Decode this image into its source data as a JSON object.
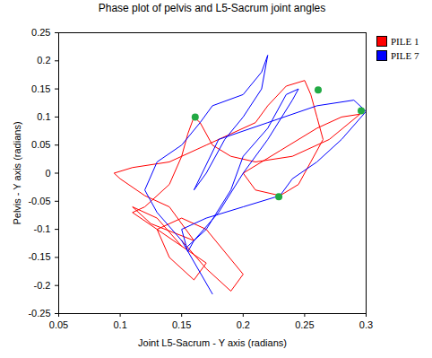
{
  "chart_data": {
    "type": "line",
    "title": "Phase plot of pelvis and L5-Sacrum joint angles",
    "x_label": "Joint L5-Sacrum - Y axis (radians)",
    "y_label": "Pelvis - Y axis (radians)",
    "xlim": [
      0.05,
      0.3
    ],
    "xticks": [
      0.05,
      0.1,
      0.15,
      0.2,
      0.25,
      0.3
    ],
    "ylim": [
      -0.25,
      0.25
    ],
    "yticks": [
      -0.25,
      -0.2,
      -0.15,
      -0.1,
      -0.05,
      0,
      0.05,
      0.1,
      0.15,
      0.2,
      0.25
    ],
    "legend": "right",
    "grid": false,
    "series": [
      {
        "name": "PILE 1",
        "color": "#ff0000",
        "x": [
          0.15,
          0.13,
          0.11,
          0.125,
          0.16,
          0.14,
          0.12,
          0.1,
          0.095,
          0.11,
          0.14,
          0.17,
          0.19,
          0.21,
          0.22,
          0.235,
          0.25,
          0.255,
          0.26,
          0.265,
          0.255,
          0.245,
          0.23,
          0.21,
          0.2,
          0.23,
          0.26,
          0.28,
          0.295,
          0.27,
          0.24,
          0.21,
          0.19,
          0.175,
          0.165,
          0.16,
          0.155,
          0.15,
          0.14,
          0.12,
          0.11,
          0.13,
          0.15,
          0.17,
          0.16,
          0.14,
          0.13,
          0.15,
          0.17,
          0.2,
          0.19,
          0.17,
          0.15
        ],
        "y": [
          -0.13,
          -0.08,
          -0.06,
          -0.09,
          -0.12,
          -0.06,
          -0.04,
          -0.01,
          0.0,
          0.01,
          0.02,
          0.05,
          0.07,
          0.09,
          0.12,
          0.155,
          0.165,
          0.14,
          0.1,
          0.06,
          0.02,
          -0.02,
          -0.04,
          -0.03,
          0.0,
          0.04,
          0.08,
          0.1,
          0.105,
          0.06,
          0.03,
          0.02,
          0.03,
          0.05,
          0.09,
          0.1,
          0.07,
          0.03,
          -0.02,
          -0.06,
          -0.07,
          -0.1,
          -0.13,
          -0.16,
          -0.19,
          -0.15,
          -0.1,
          -0.08,
          -0.1,
          -0.18,
          -0.21,
          -0.17,
          -0.12
        ]
      },
      {
        "name": "PILE 7",
        "color": "#0000ff",
        "x": [
          0.175,
          0.15,
          0.13,
          0.12,
          0.13,
          0.15,
          0.165,
          0.175,
          0.2,
          0.215,
          0.22,
          0.215,
          0.2,
          0.185,
          0.17,
          0.16,
          0.18,
          0.22,
          0.26,
          0.29,
          0.3,
          0.28,
          0.26,
          0.24,
          0.23,
          0.2,
          0.17,
          0.15,
          0.155,
          0.16,
          0.18,
          0.2,
          0.22,
          0.24,
          0.245,
          0.235,
          0.22,
          0.2,
          0.19,
          0.17,
          0.155
        ],
        "y": [
          -0.215,
          -0.12,
          -0.07,
          -0.03,
          0.02,
          0.05,
          0.09,
          0.12,
          0.14,
          0.18,
          0.21,
          0.15,
          0.1,
          0.06,
          0.0,
          -0.03,
          0.06,
          0.09,
          0.12,
          0.13,
          0.11,
          0.06,
          0.02,
          -0.01,
          -0.04,
          -0.06,
          -0.08,
          -0.1,
          -0.14,
          -0.12,
          -0.07,
          0.0,
          0.06,
          0.13,
          0.15,
          0.14,
          0.08,
          0.03,
          -0.03,
          -0.1,
          -0.13
        ]
      }
    ],
    "highlight_points": {
      "color": "#22aa44",
      "marker": "circle",
      "x": [
        0.161,
        0.261,
        0.296,
        0.229
      ],
      "y": [
        0.1,
        0.148,
        0.111,
        -0.042
      ]
    }
  }
}
